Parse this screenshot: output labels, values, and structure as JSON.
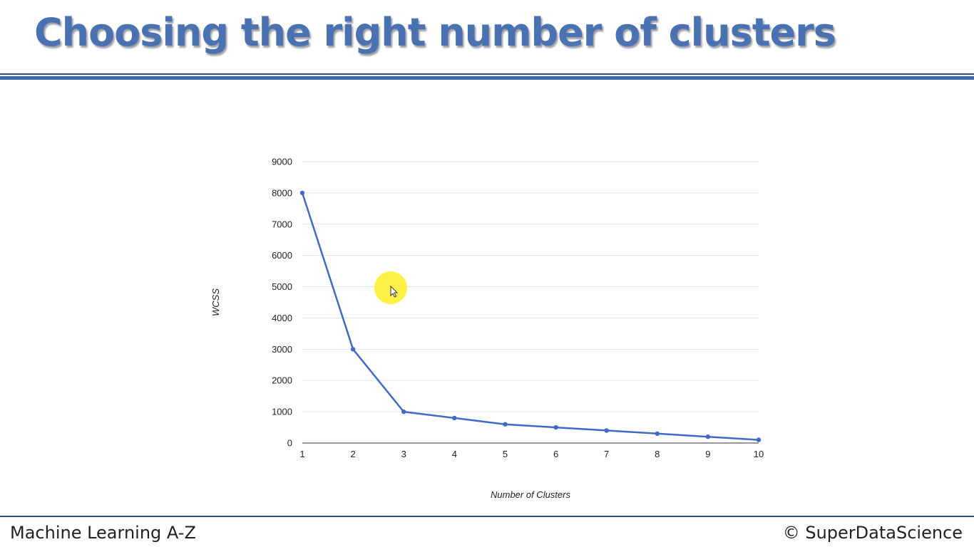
{
  "slide": {
    "title": "Choosing the right number of clusters"
  },
  "footer": {
    "left": "Machine Learning A-Z",
    "right": "© SuperDataScience"
  },
  "colors": {
    "title": "#4a72b2",
    "rule": "#3d68ad",
    "series": "#4169c8",
    "gridline": "#e2e2e2",
    "cursor_highlight": "#ffee28"
  },
  "cursor": {
    "icon": "mouse-pointer-icon"
  },
  "chart_data": {
    "type": "line",
    "x": [
      1,
      2,
      3,
      4,
      5,
      6,
      7,
      8,
      9,
      10
    ],
    "series": [
      {
        "values": [
          8000,
          3000,
          1000,
          800,
          600,
          500,
          400,
          300,
          200,
          100
        ]
      }
    ],
    "x_ticks": [
      "1",
      "2",
      "3",
      "4",
      "5",
      "6",
      "7",
      "8",
      "9",
      "10"
    ],
    "y_ticks": [
      "0",
      "1000",
      "2000",
      "3000",
      "4000",
      "5000",
      "6000",
      "7000",
      "8000",
      "9000"
    ],
    "xlabel": "Number of Clusters",
    "ylabel": "WCSS",
    "xlim": [
      1,
      10
    ],
    "ylim": [
      0,
      9000
    ],
    "grid": true,
    "legend": "none"
  }
}
